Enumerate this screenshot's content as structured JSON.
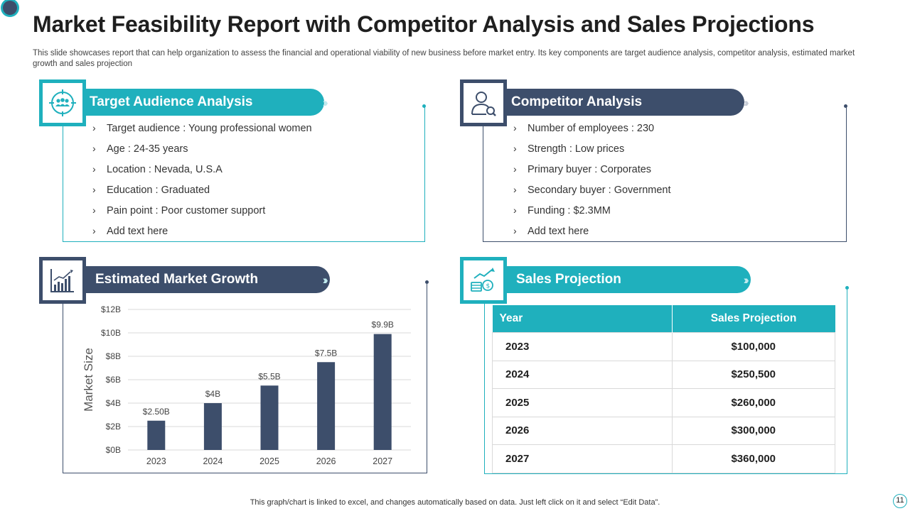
{
  "header": {
    "title": "Market Feasibility Report with Competitor Analysis and Sales Projections",
    "subtitle": "This slide showcases report that can help organization to assess the financial and operational viability of new business before market entry. Its key components are target audience analysis, competitor analysis, estimated market growth and sales projection"
  },
  "colors": {
    "teal": "#1fb0bd",
    "navy": "#3d4e6b"
  },
  "target_audience": {
    "title": "Target Audience Analysis",
    "icon": "target-people-icon",
    "items": [
      "Target audience : Young professional women",
      "Age : 24-35 years",
      "Location : Nevada, U.S.A",
      "Education : Graduated",
      "Pain point : Poor customer support",
      "Add text here"
    ]
  },
  "competitor": {
    "title": "Competitor Analysis",
    "icon": "person-search-icon",
    "items": [
      "Number of employees : 230",
      "Strength : Low prices",
      "Primary buyer : Corporates",
      "Secondary buyer : Government",
      "Funding : $2.3MM",
      "Add text here"
    ]
  },
  "market_growth": {
    "title": "Estimated Market Growth",
    "icon": "growth-chart-icon"
  },
  "sales": {
    "title": "Sales Projection",
    "icon": "money-growth-icon",
    "headers": [
      "Year",
      "Sales Projection"
    ],
    "rows": [
      [
        "2023",
        "$100,000"
      ],
      [
        "2024",
        "$250,500"
      ],
      [
        "2025",
        "$260,000"
      ],
      [
        "2026",
        "$300,000"
      ],
      [
        "2027",
        "$360,000"
      ]
    ]
  },
  "chart_data": {
    "type": "bar",
    "categories": [
      "2023",
      "2024",
      "2025",
      "2026",
      "2027"
    ],
    "values": [
      2.5,
      4,
      5.5,
      7.5,
      9.9
    ],
    "data_labels": [
      "$2.50B",
      "$4B",
      "$5.5B",
      "$7.5B",
      "$9.9B"
    ],
    "ylabel": "Market Size",
    "xlabel": "",
    "ylim": [
      0,
      12
    ],
    "yticks": [
      "$0B",
      "$2B",
      "$4B",
      "$6B",
      "$8B",
      "$10B",
      "$12B"
    ],
    "grid": true,
    "color": "#3d4e6b"
  },
  "footer": {
    "note": "This graph/chart is linked to excel,  and changes automatically based on data. Just left click on it and select “Edit Data”.",
    "page": "11"
  }
}
